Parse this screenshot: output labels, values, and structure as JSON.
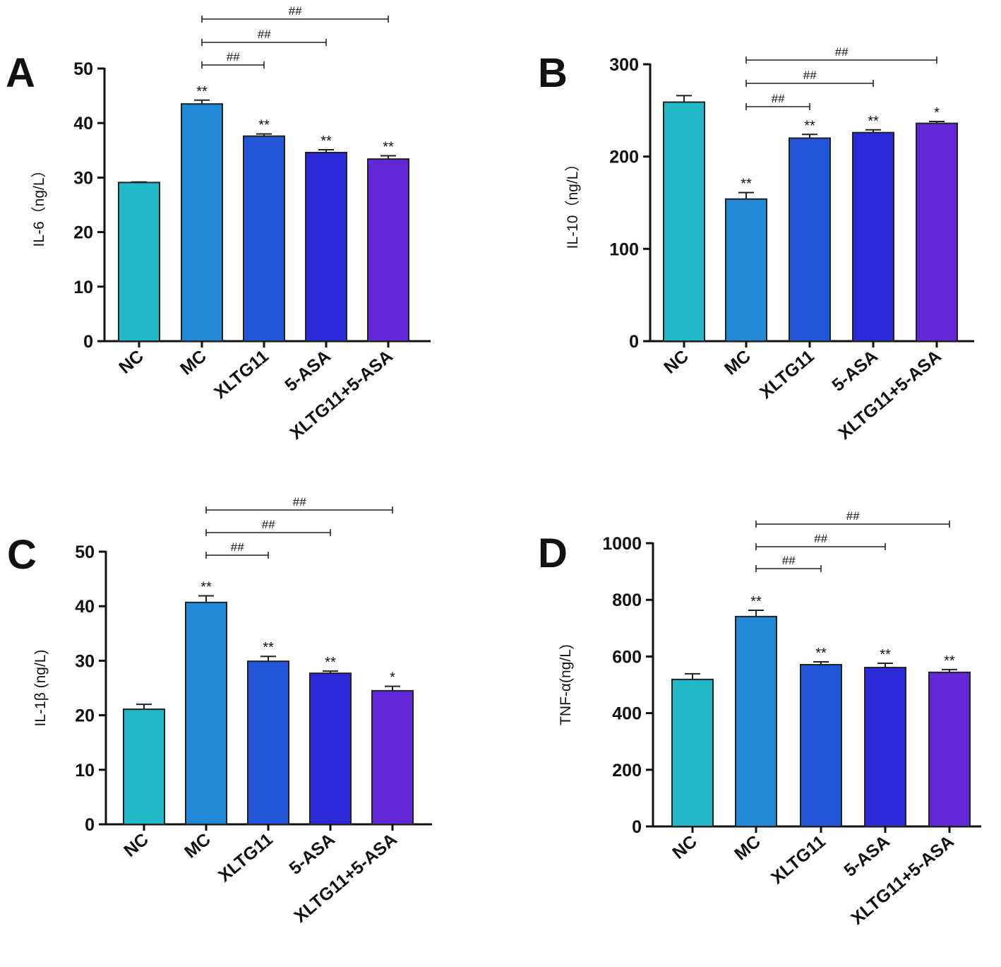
{
  "colors": [
    "#22b8c8",
    "#2288d8",
    "#2255d8",
    "#2a2ad8",
    "#6228d8"
  ],
  "chart_data": [
    {
      "type": "bar",
      "panel": "A",
      "categories": [
        "NC",
        "MC",
        "XLTG11",
        "5-ASA",
        "XLTG11+5-ASA"
      ],
      "values": [
        29.1,
        43.5,
        37.6,
        34.6,
        33.4
      ],
      "errors": [
        0.1,
        0.7,
        0.4,
        0.5,
        0.6
      ],
      "significance": [
        "",
        "**",
        "**",
        "**",
        "**"
      ],
      "ylabel": "IL-6（ng/L）",
      "ylim": [
        0,
        50
      ],
      "yticks": [
        0,
        10,
        20,
        30,
        40,
        50
      ],
      "comparisons": [
        {
          "from": "MC",
          "to": "XLTG11",
          "label": "##"
        },
        {
          "from": "MC",
          "to": "5-ASA",
          "label": "##"
        },
        {
          "from": "MC",
          "to": "XLTG11+5-ASA",
          "label": "##"
        }
      ]
    },
    {
      "type": "bar",
      "panel": "B",
      "categories": [
        "NC",
        "MC",
        "XLTG11",
        "5-ASA",
        "XLTG11+5-ASA"
      ],
      "values": [
        259,
        154,
        220,
        226,
        236
      ],
      "errors": [
        7,
        7,
        4,
        3,
        2
      ],
      "significance": [
        "",
        "**",
        "**",
        "**",
        "*"
      ],
      "ylabel": "IL-10（ng/L）",
      "ylim": [
        0,
        300
      ],
      "yticks": [
        0,
        100,
        200,
        300
      ],
      "comparisons": [
        {
          "from": "MC",
          "to": "XLTG11",
          "label": "##"
        },
        {
          "from": "MC",
          "to": "5-ASA",
          "label": "##"
        },
        {
          "from": "MC",
          "to": "XLTG11+5-ASA",
          "label": "##"
        }
      ]
    },
    {
      "type": "bar",
      "panel": "C",
      "categories": [
        "NC",
        "MC",
        "XLTG11",
        "5-ASA",
        "XLTG11+5-ASA"
      ],
      "values": [
        21.1,
        40.7,
        29.9,
        27.7,
        24.5
      ],
      "errors": [
        0.9,
        1.2,
        0.9,
        0.4,
        0.8
      ],
      "significance": [
        "",
        "**",
        "**",
        "**",
        "*"
      ],
      "ylabel": "IL-1β (ng/L)",
      "ylim": [
        0,
        50
      ],
      "yticks": [
        0,
        10,
        20,
        30,
        40,
        50
      ],
      "comparisons": [
        {
          "from": "MC",
          "to": "XLTG11",
          "label": "##"
        },
        {
          "from": "MC",
          "to": "5-ASA",
          "label": "##"
        },
        {
          "from": "MC",
          "to": "XLTG11+5-ASA",
          "label": "##"
        }
      ]
    },
    {
      "type": "bar",
      "panel": "D",
      "categories": [
        "NC",
        "MC",
        "XLTG11",
        "5-ASA",
        "XLTG11+5-ASA"
      ],
      "values": [
        519,
        741,
        571,
        561,
        544
      ],
      "errors": [
        20,
        22,
        10,
        15,
        10
      ],
      "significance": [
        "",
        "**",
        "**",
        "**",
        "**"
      ],
      "ylabel": "TNF-α(ng/L)",
      "ylim": [
        0,
        1000
      ],
      "yticks": [
        0,
        200,
        400,
        600,
        800,
        1000
      ],
      "comparisons": [
        {
          "from": "MC",
          "to": "XLTG11",
          "label": "##"
        },
        {
          "from": "MC",
          "to": "5-ASA",
          "label": "##"
        },
        {
          "from": "MC",
          "to": "XLTG11+5-ASA",
          "label": "##"
        }
      ]
    }
  ]
}
